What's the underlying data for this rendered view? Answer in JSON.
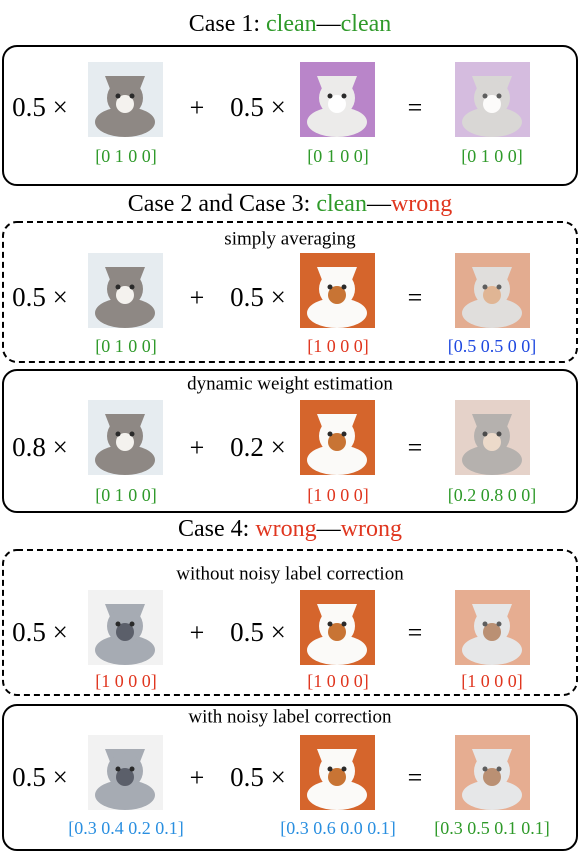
{
  "operators": {
    "plus": "+",
    "equals": "="
  },
  "headings": [
    {
      "prefix": "Case 1:",
      "left": "clean",
      "separator": "—",
      "right": "clean"
    },
    {
      "prefix": "Case 2 and Case 3:",
      "left": "clean",
      "separator": "—",
      "right": "wrong"
    },
    {
      "prefix": "Case 4:",
      "left": "wrong",
      "separator": "—",
      "right": "wrong"
    }
  ],
  "panels": [
    {
      "subtitle": null,
      "terms": [
        {
          "coef": "0.5 ×",
          "label": "[0 1 0 0]"
        },
        {
          "coef": "0.5 ×",
          "label": "[0 1 0 0]"
        }
      ],
      "result_label": "[0 1 0 0]"
    },
    {
      "subtitle": "simply averaging",
      "terms": [
        {
          "coef": "0.5 ×",
          "label": "[0 1 0 0]"
        },
        {
          "coef": "0.5 ×",
          "label": "[1 0 0 0]"
        }
      ],
      "result_label": "[0.5 0.5 0 0]"
    },
    {
      "subtitle": "dynamic weight estimation",
      "terms": [
        {
          "coef": "0.8 ×",
          "label": "[0 1 0 0]"
        },
        {
          "coef": "0.2 ×",
          "label": "[1 0 0 0]"
        }
      ],
      "result_label": "[0.2 0.8 0 0]"
    },
    {
      "subtitle": "without noisy label correction",
      "terms": [
        {
          "coef": "0.5 ×",
          "label": "[1 0 0 0]"
        },
        {
          "coef": "0.5 ×",
          "label": "[1 0 0 0]"
        }
      ],
      "result_label": "[1 0 0 0]"
    },
    {
      "subtitle": "with noisy label correction",
      "terms": [
        {
          "coef": "0.5 ×",
          "label": "[0.3 0.4 0.2 0.1]"
        },
        {
          "coef": "0.5 ×",
          "label": "[0.3 0.6 0.0 0.1]"
        }
      ],
      "result_label": "[0.3 0.5 0.1 0.1]"
    }
  ]
}
